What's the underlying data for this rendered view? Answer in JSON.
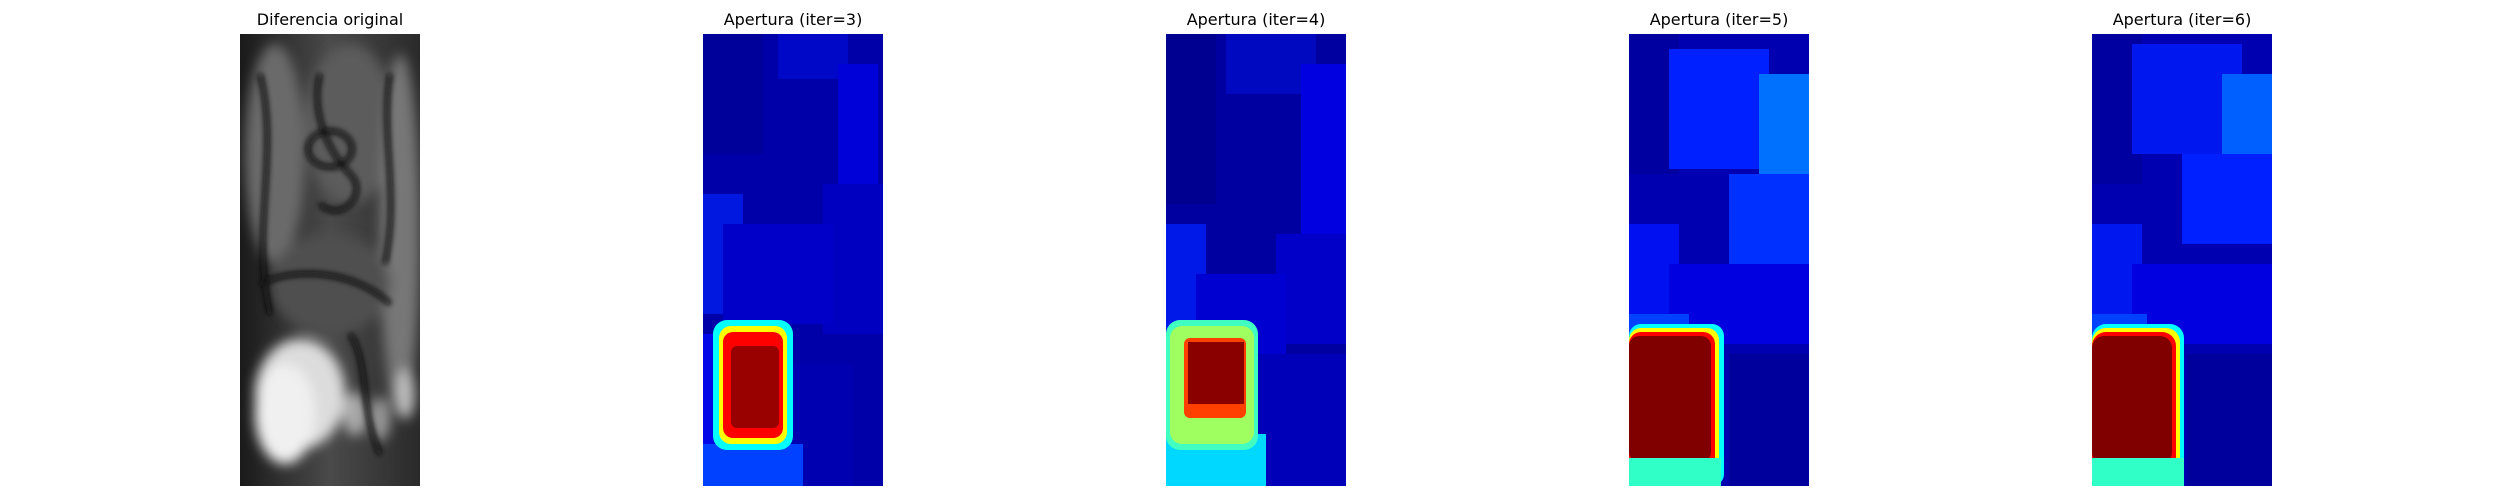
{
  "figure": {
    "panels": [
      {
        "title": "Diferencia original",
        "colormap": "gray"
      },
      {
        "title": "Apertura (iter=3)",
        "colormap": "jet"
      },
      {
        "title": "Apertura (iter=4)",
        "colormap": "jet"
      },
      {
        "title": "Apertura (iter=5)",
        "colormap": "jet"
      },
      {
        "title": "Apertura (iter=6)",
        "colormap": "jet"
      }
    ]
  },
  "colors": {
    "background": "#ffffff",
    "jet_dark_blue": "#00008b",
    "jet_blue": "#0000ff",
    "jet_light_blue": "#0060ff",
    "jet_cyan": "#00ffff",
    "jet_yellow": "#ffff00",
    "jet_red": "#ff0000",
    "jet_dark_red": "#800000",
    "gray_black": "#000000",
    "gray_white": "#ffffff"
  }
}
